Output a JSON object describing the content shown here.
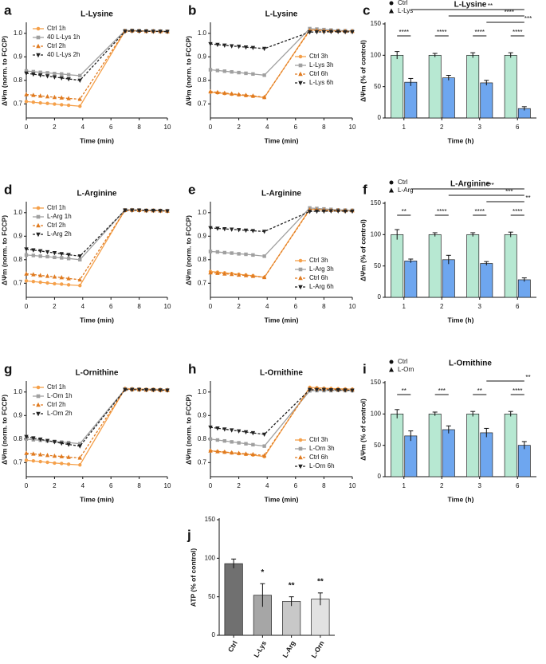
{
  "chart_data": [
    {
      "type": "line",
      "panel": "a",
      "title": "L-Lysine",
      "xlabel": "Time (min)",
      "ylabel": "ΔΨm (norm. to FCCP)",
      "legend": "upper left",
      "x": [
        0,
        0.5,
        1,
        1.5,
        2,
        2.5,
        3,
        3.8,
        7,
        7.5,
        8,
        8.5,
        9,
        9.5,
        10
      ],
      "xlim": [
        0,
        10
      ],
      "xticks": [
        0,
        2,
        4,
        6,
        8,
        10
      ],
      "ylim": [
        0.64,
        1.04
      ],
      "yticks": [
        0.7,
        0.8,
        0.9,
        {
          "value": 1,
          "label": "1.0"
        }
      ],
      "series": [
        {
          "name": "Ctrl 1h",
          "color": "#f5a04a",
          "dashed": false,
          "marker": "circle",
          "values": [
            0.71,
            0.707,
            0.704,
            0.702,
            0.699,
            0.696,
            0.694,
            0.69,
            1.01,
            1.012,
            1.01,
            1.01,
            1.009,
            1.008,
            1.008
          ]
        },
        {
          "name": "40 L-Lys 1h",
          "color": "#a0a0a0",
          "dashed": false,
          "marker": "square",
          "values": [
            0.84,
            0.837,
            0.834,
            0.832,
            0.829,
            0.827,
            0.824,
            0.82,
            1.012,
            1.012,
            1.011,
            1.01,
            1.01,
            1.009,
            1.008
          ]
        },
        {
          "name": "Ctrl 2h",
          "color": "#e07b20",
          "dashed": true,
          "marker": "triangle",
          "values": [
            0.74,
            0.737,
            0.734,
            0.731,
            0.728,
            0.726,
            0.723,
            0.72,
            1.01,
            1.011,
            1.01,
            1.009,
            1.009,
            1.008,
            1.007
          ]
        },
        {
          "name": "40 L-Lys 2h",
          "color": "#222222",
          "dashed": true,
          "marker": "triangle-down",
          "values": [
            0.83,
            0.826,
            0.822,
            0.818,
            0.814,
            0.81,
            0.806,
            0.8,
            1.008,
            1.01,
            1.009,
            1.009,
            1.008,
            1.008,
            1.007
          ]
        }
      ]
    },
    {
      "type": "line",
      "panel": "b",
      "title": "L-Lysine",
      "xlabel": "Time (min)",
      "ylabel": "ΔΨm (norm. to FCCP)",
      "legend": "center right",
      "x": [
        0,
        0.5,
        1,
        1.5,
        2,
        2.5,
        3,
        3.8,
        7,
        7.5,
        8,
        8.5,
        9,
        9.5,
        10
      ],
      "xlim": [
        0,
        10
      ],
      "xticks": [
        0,
        2,
        4,
        6,
        8,
        10
      ],
      "ylim": [
        0.64,
        1.04
      ],
      "yticks": [
        0.7,
        0.8,
        0.9,
        {
          "value": 1,
          "label": "1.0"
        }
      ],
      "series": [
        {
          "name": "Ctrl 3h",
          "color": "#f5a04a",
          "dashed": false,
          "marker": "circle",
          "values": [
            0.75,
            0.747,
            0.744,
            0.741,
            0.738,
            0.735,
            0.732,
            0.727,
            1.015,
            1.014,
            1.012,
            1.011,
            1.01,
            1.01,
            1.009
          ]
        },
        {
          "name": "L-Lys 3h",
          "color": "#a0a0a0",
          "dashed": false,
          "marker": "square",
          "values": [
            0.845,
            0.842,
            0.839,
            0.836,
            0.833,
            0.83,
            0.827,
            0.822,
            1.02,
            1.018,
            1.016,
            1.014,
            1.012,
            1.011,
            1.01
          ]
        },
        {
          "name": "Ctrl 6h",
          "color": "#e07b20",
          "dashed": true,
          "marker": "triangle",
          "values": [
            0.752,
            0.749,
            0.746,
            0.743,
            0.74,
            0.737,
            0.734,
            0.728,
            1.012,
            1.012,
            1.011,
            1.01,
            1.01,
            1.009,
            1.009
          ]
        },
        {
          "name": "L-Lys 6h",
          "color": "#222222",
          "dashed": true,
          "marker": "triangle-down",
          "values": [
            0.955,
            0.952,
            0.949,
            0.946,
            0.944,
            0.941,
            0.939,
            0.935,
            1.005,
            1.006,
            1.006,
            1.007,
            1.007,
            1.006,
            1.006
          ]
        }
      ]
    },
    {
      "type": "bar",
      "panel": "c",
      "title": "L-Lysine",
      "xlabel": "Time (h)",
      "ylabel": "ΔΨm (% of control)",
      "categories": [
        "1",
        "2",
        "3",
        "6"
      ],
      "ylim": [
        0,
        150
      ],
      "yticks": [
        0,
        50,
        100,
        150
      ],
      "series": [
        {
          "name": "Ctrl",
          "color": "#b7e8d2",
          "marker": "circle",
          "values": [
            100,
            100,
            100,
            100
          ],
          "errors": [
            6,
            3,
            4,
            4
          ]
        },
        {
          "name": "L-Lys",
          "color": "#6ea6ef",
          "marker": "triangle",
          "values": [
            57,
            64,
            56,
            15
          ],
          "errors": [
            6,
            4,
            4,
            3
          ]
        }
      ],
      "within_significance": [
        "****",
        "****",
        "****",
        "****"
      ],
      "across_significance": [
        "**",
        "****",
        "***"
      ]
    },
    {
      "type": "line",
      "panel": "d",
      "title": "L-Arginine",
      "xlabel": "Time (min)",
      "ylabel": "ΔΨm (norm. to FCCP)",
      "legend": "upper left",
      "x": [
        0,
        0.5,
        1,
        1.5,
        2,
        2.5,
        3,
        3.8,
        7,
        7.5,
        8,
        8.5,
        9,
        9.5,
        10
      ],
      "xlim": [
        0,
        10
      ],
      "xticks": [
        0,
        2,
        4,
        6,
        8,
        10
      ],
      "ylim": [
        0.64,
        1.04
      ],
      "yticks": [
        0.7,
        0.8,
        0.9,
        {
          "value": 1,
          "label": "1.0"
        }
      ],
      "series": [
        {
          "name": "Ctrl 1h",
          "color": "#f5a04a",
          "dashed": false,
          "marker": "circle",
          "values": [
            0.71,
            0.707,
            0.704,
            0.701,
            0.698,
            0.696,
            0.693,
            0.69,
            1.012,
            1.012,
            1.011,
            1.01,
            1.01,
            1.009,
            1.008
          ]
        },
        {
          "name": "L-Arg 1h",
          "color": "#a0a0a0",
          "dashed": false,
          "marker": "square",
          "values": [
            0.82,
            0.818,
            0.815,
            0.813,
            0.81,
            0.808,
            0.805,
            0.8,
            1.012,
            1.012,
            1.011,
            1.01,
            1.01,
            1.009,
            1.008
          ]
        },
        {
          "name": "Ctrl 2h",
          "color": "#e07b20",
          "dashed": true,
          "marker": "triangle",
          "values": [
            0.74,
            0.737,
            0.733,
            0.73,
            0.727,
            0.724,
            0.72,
            0.715,
            1.01,
            1.011,
            1.01,
            1.009,
            1.009,
            1.008,
            1.007
          ]
        },
        {
          "name": "L-Arg 2h",
          "color": "#222222",
          "dashed": true,
          "marker": "triangle-down",
          "values": [
            0.845,
            0.841,
            0.837,
            0.833,
            0.829,
            0.825,
            0.821,
            0.815,
            1.01,
            1.01,
            1.01,
            1.009,
            1.009,
            1.008,
            1.007
          ]
        }
      ]
    },
    {
      "type": "line",
      "panel": "e",
      "title": "L-Arginine",
      "xlabel": "Time (min)",
      "ylabel": "ΔΨm (norm. to FCCP)",
      "legend": "lower right",
      "x": [
        0,
        0.5,
        1,
        1.5,
        2,
        2.5,
        3,
        3.8,
        7,
        7.5,
        8,
        8.5,
        9,
        9.5,
        10
      ],
      "xlim": [
        0,
        10
      ],
      "xticks": [
        0,
        2,
        4,
        6,
        8,
        10
      ],
      "ylim": [
        0.64,
        1.04
      ],
      "yticks": [
        0.7,
        0.8,
        0.9,
        {
          "value": 1,
          "label": "1.0"
        }
      ],
      "series": [
        {
          "name": "Ctrl 3h",
          "color": "#f5a04a",
          "dashed": false,
          "marker": "circle",
          "values": [
            0.75,
            0.747,
            0.744,
            0.741,
            0.738,
            0.735,
            0.732,
            0.725,
            1.015,
            1.014,
            1.012,
            1.011,
            1.01,
            1.01,
            1.009
          ]
        },
        {
          "name": "L-Arg 3h",
          "color": "#a0a0a0",
          "dashed": false,
          "marker": "square",
          "values": [
            0.835,
            0.833,
            0.83,
            0.828,
            0.825,
            0.823,
            0.82,
            0.815,
            1.02,
            1.018,
            1.016,
            1.014,
            1.012,
            1.011,
            1.01
          ]
        },
        {
          "name": "Ctrl 6h",
          "color": "#e07b20",
          "dashed": true,
          "marker": "triangle",
          "values": [
            0.745,
            0.743,
            0.74,
            0.738,
            0.735,
            0.733,
            0.73,
            0.725,
            1.012,
            1.012,
            1.011,
            1.01,
            1.01,
            1.009,
            1.009
          ]
        },
        {
          "name": "L-Arg 6h",
          "color": "#222222",
          "dashed": true,
          "marker": "triangle-down",
          "values": [
            0.935,
            0.933,
            0.931,
            0.929,
            0.927,
            0.925,
            0.923,
            0.92,
            1.005,
            1.006,
            1.006,
            1.007,
            1.007,
            1.006,
            1.006
          ]
        }
      ]
    },
    {
      "type": "bar",
      "panel": "f",
      "title": "L-Arginine",
      "xlabel": "Time (h)",
      "ylabel": "ΔΨm (% of control)",
      "categories": [
        "1",
        "2",
        "3",
        "6"
      ],
      "ylim": [
        0,
        150
      ],
      "yticks": [
        0,
        50,
        100,
        150
      ],
      "series": [
        {
          "name": "Ctrl",
          "color": "#b7e8d2",
          "marker": "circle",
          "values": [
            100,
            100,
            100,
            100
          ],
          "errors": [
            8,
            3,
            3,
            4
          ]
        },
        {
          "name": "L-Arg",
          "color": "#6ea6ef",
          "marker": "triangle",
          "values": [
            58,
            60,
            54,
            28
          ],
          "errors": [
            3,
            7,
            3,
            3
          ]
        }
      ],
      "within_significance": [
        "**",
        "****",
        "****",
        "****"
      ],
      "across_significance": [
        "***",
        "***",
        "**"
      ]
    },
    {
      "type": "line",
      "panel": "g",
      "title": "L-Ornithine",
      "xlabel": "Time (min)",
      "ylabel": "ΔΨm (norm. to FCCP)",
      "legend": "upper left",
      "x": [
        0,
        0.5,
        1,
        1.5,
        2,
        2.5,
        3,
        3.8,
        7,
        7.5,
        8,
        8.5,
        9,
        9.5,
        10
      ],
      "xlim": [
        0,
        10
      ],
      "xticks": [
        0,
        2,
        4,
        6,
        8,
        10
      ],
      "ylim": [
        0.64,
        1.04
      ],
      "yticks": [
        0.7,
        0.8,
        0.9,
        {
          "value": 1,
          "label": "1.0"
        }
      ],
      "series": [
        {
          "name": "Ctrl 1h",
          "color": "#f5a04a",
          "dashed": false,
          "marker": "circle",
          "values": [
            0.71,
            0.707,
            0.704,
            0.701,
            0.698,
            0.696,
            0.693,
            0.69,
            1.015,
            1.014,
            1.013,
            1.012,
            1.012,
            1.011,
            1.01
          ]
        },
        {
          "name": "L-Orn 1h",
          "color": "#a0a0a0",
          "dashed": false,
          "marker": "square",
          "values": [
            0.8,
            0.797,
            0.795,
            0.792,
            0.79,
            0.787,
            0.785,
            0.78,
            1.012,
            1.012,
            1.011,
            1.01,
            1.01,
            1.009,
            1.008
          ]
        },
        {
          "name": "Ctrl 2h",
          "color": "#e07b20",
          "dashed": true,
          "marker": "triangle",
          "values": [
            0.74,
            0.737,
            0.734,
            0.731,
            0.728,
            0.726,
            0.723,
            0.72,
            1.012,
            1.011,
            1.01,
            1.009,
            1.009,
            1.008,
            1.007
          ]
        },
        {
          "name": "L-Orn 2h",
          "color": "#222222",
          "dashed": true,
          "marker": "triangle-down",
          "values": [
            0.81,
            0.804,
            0.799,
            0.793,
            0.788,
            0.782,
            0.777,
            0.77,
            1.01,
            1.01,
            1.01,
            1.009,
            1.009,
            1.008,
            1.007
          ]
        }
      ]
    },
    {
      "type": "line",
      "panel": "h",
      "title": "L-Ornithine",
      "xlabel": "Time (min)",
      "ylabel": "ΔΨm (norm. to FCCP)",
      "legend": "lower right",
      "x": [
        0,
        0.5,
        1,
        1.5,
        2,
        2.5,
        3,
        3.8,
        7,
        7.5,
        8,
        8.5,
        9,
        9.5,
        10
      ],
      "xlim": [
        0,
        10
      ],
      "xticks": [
        0,
        2,
        4,
        6,
        8,
        10
      ],
      "ylim": [
        0.64,
        1.04
      ],
      "yticks": [
        0.7,
        0.8,
        0.9,
        {
          "value": 1,
          "label": "1.0"
        }
      ],
      "series": [
        {
          "name": "Ctrl 3h",
          "color": "#f5a04a",
          "dashed": false,
          "marker": "circle",
          "values": [
            0.75,
            0.747,
            0.744,
            0.741,
            0.738,
            0.735,
            0.732,
            0.725,
            1.02,
            1.018,
            1.016,
            1.015,
            1.014,
            1.013,
            1.012
          ]
        },
        {
          "name": "L-Orn 3h",
          "color": "#a0a0a0",
          "dashed": false,
          "marker": "square",
          "values": [
            0.8,
            0.796,
            0.792,
            0.788,
            0.784,
            0.78,
            0.776,
            0.77,
            1.005,
            1.006,
            1.006,
            1.006,
            1.007,
            1.006,
            1.006
          ]
        },
        {
          "name": "Ctrl 6h",
          "color": "#e07b20",
          "dashed": true,
          "marker": "triangle",
          "values": [
            0.75,
            0.747,
            0.745,
            0.742,
            0.74,
            0.737,
            0.735,
            0.73,
            1.015,
            1.014,
            1.013,
            1.012,
            1.011,
            1.01,
            1.01
          ]
        },
        {
          "name": "L-Orn 6h",
          "color": "#222222",
          "dashed": true,
          "marker": "triangle-down",
          "values": [
            0.85,
            0.846,
            0.842,
            0.838,
            0.834,
            0.83,
            0.826,
            0.82,
            1.01,
            1.01,
            1.01,
            1.009,
            1.009,
            1.008,
            1.007
          ]
        }
      ]
    },
    {
      "type": "bar",
      "panel": "i",
      "title": "L-Ornithine",
      "xlabel": "Time (h)",
      "ylabel": "ΔΨm (% of control)",
      "categories": [
        "1",
        "2",
        "3",
        "6"
      ],
      "ylim": [
        0,
        150
      ],
      "yticks": [
        0,
        50,
        100,
        150
      ],
      "series": [
        {
          "name": "Ctrl",
          "color": "#b7e8d2",
          "marker": "circle",
          "values": [
            100,
            100,
            100,
            100
          ],
          "errors": [
            7,
            3,
            4,
            4
          ]
        },
        {
          "name": "L-Orn",
          "color": "#6ea6ef",
          "marker": "triangle",
          "values": [
            65,
            75,
            70,
            50
          ],
          "errors": [
            8,
            6,
            7,
            6
          ]
        }
      ],
      "within_significance": [
        "**",
        "***",
        "**",
        "****"
      ],
      "across_significance": [
        "**"
      ]
    },
    {
      "type": "bar",
      "panel": "j",
      "ylabel": "ATP (% of control)",
      "categories": [
        "Ctrl",
        "L-Lys",
        "L-Arg",
        "L-Orn"
      ],
      "ylim": [
        0,
        150
      ],
      "yticks": [
        0,
        50,
        100,
        150
      ],
      "values": [
        93,
        52,
        44,
        47
      ],
      "errors": [
        6,
        15,
        6,
        8
      ],
      "colors": [
        "#707070",
        "#a6a6a6",
        "#c8c8c8",
        "#e2e2e2"
      ],
      "value_annotations": [
        null,
        "*",
        "**",
        "**"
      ]
    }
  ]
}
